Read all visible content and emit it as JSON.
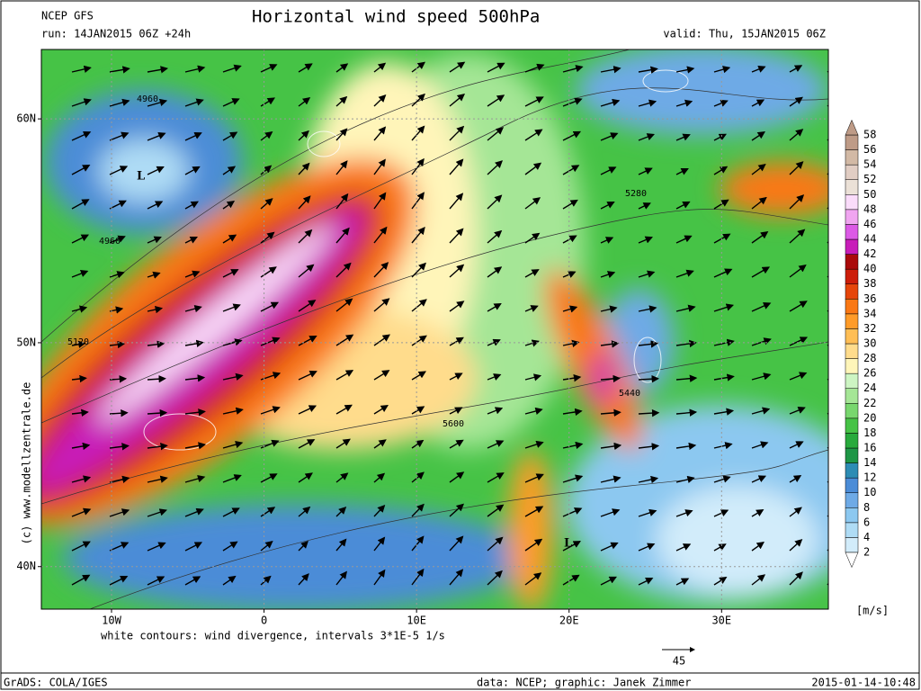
{
  "header": {
    "model": "NCEP GFS",
    "title": "Horizontal wind speed 500hPa",
    "run": "run: 14JAN2015 06Z +24h",
    "valid": "valid: Thu, 15JAN2015 06Z"
  },
  "map": {
    "lon_range": [
      -14.6,
      37
    ],
    "lat_range": [
      38.1,
      63.1
    ],
    "lat_ticks": [
      {
        "value": 60,
        "label": "60N"
      },
      {
        "value": 50,
        "label": "50N"
      },
      {
        "value": 40,
        "label": "40N"
      }
    ],
    "lon_ticks": [
      {
        "value": -10,
        "label": "10W"
      },
      0,
      {
        "value": 10,
        "label": "10E"
      },
      {
        "value": 20,
        "label": "20E"
      },
      {
        "value": 30,
        "label": "30E"
      }
    ],
    "contour_labels": [
      "4960",
      "4960",
      "5120",
      "5280",
      "5440",
      "5600"
    ],
    "lows": [
      "L",
      "L"
    ],
    "note": "white contours: wind divergence, intervals 3*1E-5 1/s",
    "vector_ref": "45",
    "copyright": "(c) www.modellzentrale.de"
  },
  "colorbar": {
    "unit": "[m/s]",
    "levels": [
      2,
      4,
      6,
      8,
      10,
      12,
      14,
      16,
      18,
      20,
      22,
      24,
      26,
      28,
      30,
      32,
      34,
      36,
      38,
      40,
      42,
      44,
      46,
      48,
      50,
      52,
      54,
      56,
      58
    ],
    "colors": [
      "#ffffff",
      "#d2ecfa",
      "#afdcf5",
      "#8cc8f0",
      "#6eaae6",
      "#4b8cd7",
      "#2d8cb4",
      "#1e9646",
      "#28aa3c",
      "#46c346",
      "#78d76e",
      "#a5e696",
      "#cdf5c3",
      "#fff5b9",
      "#ffdc8c",
      "#ffbe55",
      "#ff9b28",
      "#fa7814",
      "#e6460a",
      "#cd1e0a",
      "#aa0a0a",
      "#c81eb9",
      "#dc5ae6",
      "#f0a5f0",
      "#fadcfa",
      "#ebe1d7",
      "#e1cdc3",
      "#d2b9a5",
      "#be9b87"
    ]
  },
  "footer": {
    "grads": "GrADS: COLA/IGES",
    "credit": "data: NCEP; graphic: Janek Zimmer",
    "timestamp": "2015-01-14-10:48"
  }
}
